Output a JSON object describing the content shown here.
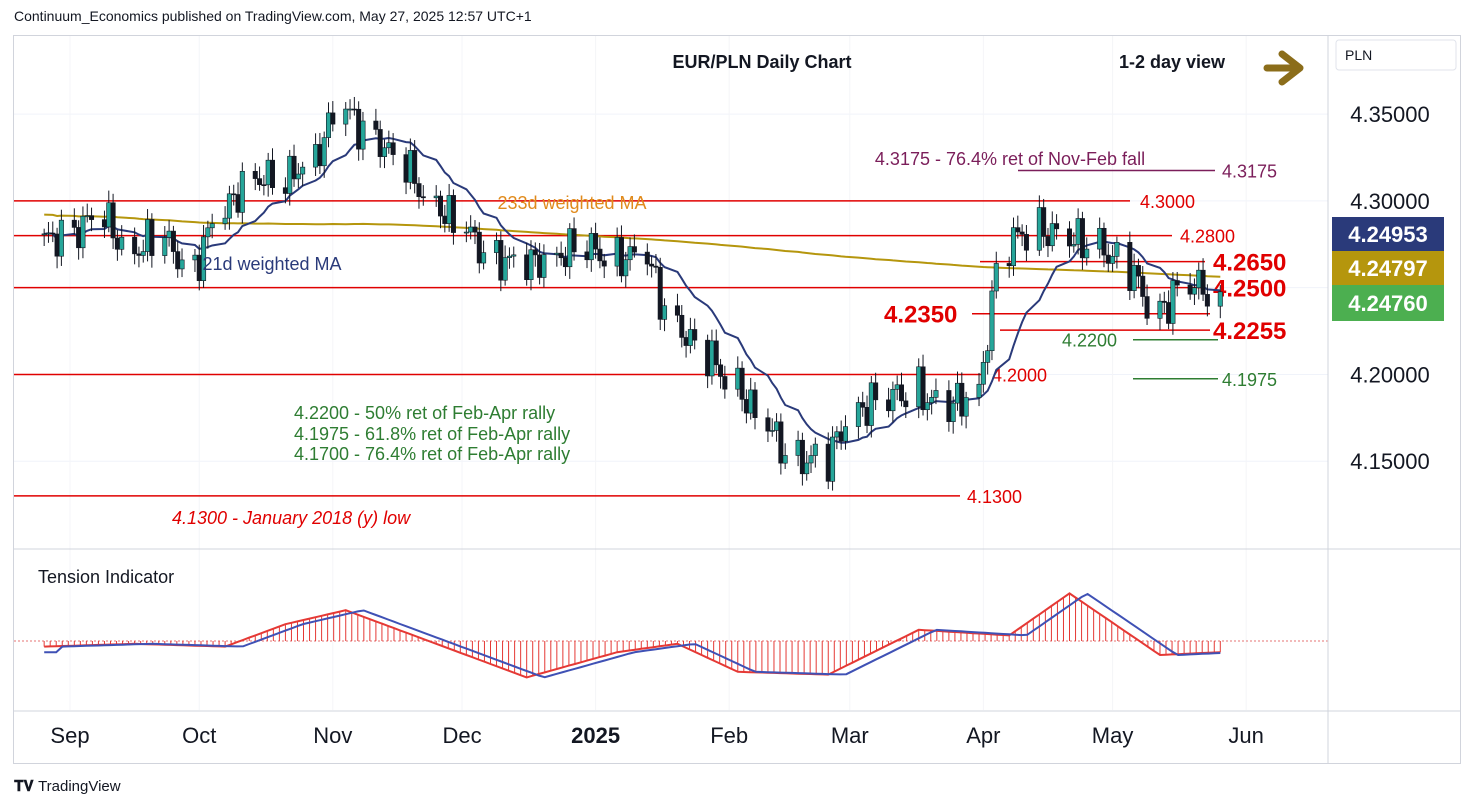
{
  "header": {
    "published": "Continuum_Economics published on TradingView.com, May 27, 2025 12:57 UTC+1"
  },
  "chart": {
    "title": "EUR/PLN Daily Chart",
    "view_label": "1-2 day view",
    "currency_label": "PLN",
    "tension_label": "Tension Indicator",
    "colors": {
      "up": "#26a69a",
      "down": "#131722",
      "level": "#e00000",
      "ma21": "#2a3a7a",
      "ma233": "#b5960d",
      "fib_up": "#2e7d32",
      "fib_down": "#7b1e5a",
      "arrow": "#8b6d1a",
      "tension_red": "#e53935",
      "tension_blue": "#3f51b5"
    },
    "price_badges": [
      {
        "value": "4.24953",
        "color": "#2a3a7a"
      },
      {
        "value": "4.24797",
        "color": "#b5960d"
      },
      {
        "value": "4.24760",
        "color": "#4caf50"
      }
    ]
  },
  "chart_data": {
    "type": "candlestick",
    "title": "EUR/PLN Daily Chart",
    "y_ticks": [
      4.15,
      4.2,
      4.25,
      4.3,
      4.35
    ],
    "y_tick_labels": [
      "4.15000",
      "4.20000",
      "4.25000",
      "4.30000",
      "4.35000"
    ],
    "ylim": [
      4.1,
      4.395
    ],
    "x_tick_labels": [
      "Sep",
      "Oct",
      "Nov",
      "Dec",
      "2025",
      "Feb",
      "Mar",
      "Apr",
      "May",
      "Jun"
    ],
    "horizontal_levels": [
      {
        "value": 4.3,
        "label": "4.3000"
      },
      {
        "value": 4.28,
        "label": "4.2800"
      },
      {
        "value": 4.265,
        "label": "4.2650"
      },
      {
        "value": 4.25,
        "label": "4.2500"
      },
      {
        "value": 4.235,
        "label": "4.2350"
      },
      {
        "value": 4.2255,
        "label": "4.2255"
      },
      {
        "value": 4.22,
        "label": "4.2200"
      },
      {
        "value": 4.2,
        "label": "4.2000"
      },
      {
        "value": 4.1975,
        "label": "4.1975"
      },
      {
        "value": 4.3175,
        "label": "4.3175"
      },
      {
        "value": 4.13,
        "label": "4.1300"
      }
    ],
    "annotations": [
      "4.3175 - 76.4% ret of Nov-Feb fall",
      "233d weighted MA",
      "21d weighted MA",
      "4.2200 - 50% ret of Feb-Apr rally",
      "4.1975 - 61.8% ret of Feb-Apr rally",
      "4.1700 - 76.4% ret of Feb-Apr rally",
      "4.1300 - January 2018 (y) low"
    ],
    "close_series": [
      {
        "date": "2024-08-26",
        "close": 4.276
      },
      {
        "date": "2024-09-02",
        "close": 4.283
      },
      {
        "date": "2024-09-09",
        "close": 4.29
      },
      {
        "date": "2024-09-16",
        "close": 4.272
      },
      {
        "date": "2024-09-23",
        "close": 4.278
      },
      {
        "date": "2024-09-30",
        "close": 4.262
      },
      {
        "date": "2024-10-07",
        "close": 4.292
      },
      {
        "date": "2024-10-14",
        "close": 4.315
      },
      {
        "date": "2024-10-21",
        "close": 4.31
      },
      {
        "date": "2024-10-28",
        "close": 4.326
      },
      {
        "date": "2024-11-04",
        "close": 4.352
      },
      {
        "date": "2024-11-11",
        "close": 4.338
      },
      {
        "date": "2024-11-18",
        "close": 4.32
      },
      {
        "date": "2024-11-25",
        "close": 4.3
      },
      {
        "date": "2024-12-02",
        "close": 4.283
      },
      {
        "date": "2024-12-09",
        "close": 4.268
      },
      {
        "date": "2024-12-16",
        "close": 4.262
      },
      {
        "date": "2024-12-23",
        "close": 4.269
      },
      {
        "date": "2024-12-30",
        "close": 4.273
      },
      {
        "date": "2025-01-06",
        "close": 4.268
      },
      {
        "date": "2025-01-13",
        "close": 4.267
      },
      {
        "date": "2025-01-20",
        "close": 4.23
      },
      {
        "date": "2025-01-27",
        "close": 4.211
      },
      {
        "date": "2025-02-03",
        "close": 4.196
      },
      {
        "date": "2025-02-10",
        "close": 4.17
      },
      {
        "date": "2025-02-17",
        "close": 4.152
      },
      {
        "date": "2025-02-24",
        "close": 4.15
      },
      {
        "date": "2025-03-03",
        "close": 4.18
      },
      {
        "date": "2025-03-10",
        "close": 4.186
      },
      {
        "date": "2025-03-17",
        "close": 4.191
      },
      {
        "date": "2025-03-24",
        "close": 4.18
      },
      {
        "date": "2025-03-31",
        "close": 4.19
      },
      {
        "date": "2025-04-07",
        "close": 4.275
      },
      {
        "date": "2025-04-14",
        "close": 4.285
      },
      {
        "date": "2025-04-21",
        "close": 4.278
      },
      {
        "date": "2025-04-28",
        "close": 4.275
      },
      {
        "date": "2025-05-05",
        "close": 4.262
      },
      {
        "date": "2025-05-12",
        "close": 4.236
      },
      {
        "date": "2025-05-19",
        "close": 4.252
      },
      {
        "date": "2025-05-26",
        "close": 4.2476
      }
    ],
    "tension_indicator": [
      {
        "date": "2024-08-26",
        "value": -0.2
      },
      {
        "date": "2024-09-16",
        "value": -0.1
      },
      {
        "date": "2024-10-07",
        "value": -0.2
      },
      {
        "date": "2024-10-21",
        "value": 0.6
      },
      {
        "date": "2024-11-04",
        "value": 1.1
      },
      {
        "date": "2024-11-25",
        "value": -0.1
      },
      {
        "date": "2024-12-16",
        "value": -1.3
      },
      {
        "date": "2025-01-06",
        "value": -0.4
      },
      {
        "date": "2025-01-20",
        "value": -0.1
      },
      {
        "date": "2025-02-03",
        "value": -1.1
      },
      {
        "date": "2025-02-24",
        "value": -1.2
      },
      {
        "date": "2025-03-17",
        "value": 0.4
      },
      {
        "date": "2025-04-07",
        "value": 0.2
      },
      {
        "date": "2025-04-21",
        "value": 1.7
      },
      {
        "date": "2025-05-12",
        "value": -0.5
      },
      {
        "date": "2025-05-26",
        "value": -0.4
      }
    ]
  },
  "footer": {
    "brand": "TradingView"
  }
}
